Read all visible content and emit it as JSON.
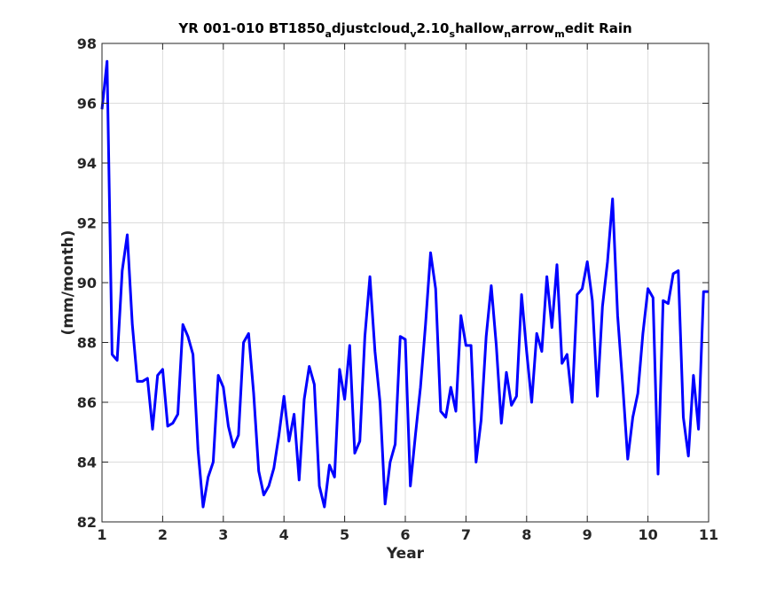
{
  "chart_data": {
    "type": "line",
    "title": "YR 001-010 BT1850",
    "title_parts": [
      "YR 001-010 BT1850",
      "a",
      "djustcloud",
      "v",
      "2.10",
      "s",
      "hallow",
      "n",
      "arrow",
      "m",
      "edit Rain"
    ],
    "xlabel": "Year",
    "ylabel": "(mm/month)",
    "xlim": [
      1,
      11
    ],
    "ylim": [
      82,
      98
    ],
    "xticks": [
      1,
      2,
      3,
      4,
      5,
      6,
      7,
      8,
      9,
      10,
      11
    ],
    "yticks": [
      82,
      84,
      86,
      88,
      90,
      92,
      94,
      96,
      98
    ],
    "grid": true,
    "series": [
      {
        "color": "#0000ff",
        "x": [
          1.0,
          1.083,
          1.167,
          1.25,
          1.333,
          1.417,
          1.5,
          1.583,
          1.667,
          1.75,
          1.833,
          1.917,
          2.0,
          2.083,
          2.167,
          2.25,
          2.333,
          2.417,
          2.5,
          2.583,
          2.667,
          2.75,
          2.833,
          2.917,
          3.0,
          3.083,
          3.167,
          3.25,
          3.333,
          3.417,
          3.5,
          3.583,
          3.667,
          3.75,
          3.833,
          3.917,
          4.0,
          4.083,
          4.167,
          4.25,
          4.333,
          4.417,
          4.5,
          4.583,
          4.667,
          4.75,
          4.833,
          4.917,
          5.0,
          5.083,
          5.167,
          5.25,
          5.333,
          5.417,
          5.5,
          5.583,
          5.667,
          5.75,
          5.833,
          5.917,
          6.0,
          6.083,
          6.167,
          6.25,
          6.333,
          6.417,
          6.5,
          6.583,
          6.667,
          6.75,
          6.833,
          6.917,
          7.0,
          7.083,
          7.167,
          7.25,
          7.333,
          7.417,
          7.5,
          7.583,
          7.667,
          7.75,
          7.833,
          7.917,
          8.0,
          8.083,
          8.167,
          8.25,
          8.333,
          8.417,
          8.5,
          8.583,
          8.667,
          8.75,
          8.833,
          8.917,
          9.0,
          9.083,
          9.167,
          9.25,
          9.333,
          9.417,
          9.5,
          9.583,
          9.667,
          9.75,
          9.833,
          9.917,
          10.0,
          10.083,
          10.167,
          10.25,
          10.333,
          10.417,
          10.5,
          10.583,
          10.667,
          10.75,
          10.833,
          10.917,
          11.0
        ],
        "y": [
          95.8,
          97.4,
          87.6,
          87.4,
          90.4,
          91.6,
          88.6,
          86.7,
          86.7,
          86.8,
          85.1,
          86.9,
          87.1,
          85.2,
          85.3,
          85.6,
          88.6,
          88.2,
          87.6,
          84.4,
          82.5,
          83.5,
          84.0,
          86.9,
          86.5,
          85.2,
          84.5,
          84.9,
          88.0,
          88.3,
          86.3,
          83.7,
          82.9,
          83.2,
          83.8,
          84.9,
          86.2,
          84.7,
          85.6,
          83.4,
          86.1,
          87.2,
          86.6,
          83.2,
          82.5,
          83.9,
          83.5,
          87.1,
          86.1,
          87.9,
          84.3,
          84.7,
          88.2,
          90.2,
          87.7,
          86.0,
          82.6,
          84.0,
          84.6,
          88.2,
          88.1,
          83.2,
          84.9,
          86.5,
          88.6,
          91.0,
          89.8,
          85.7,
          85.5,
          86.5,
          85.7,
          88.9,
          87.9,
          87.9,
          84.0,
          85.4,
          88.2,
          89.9,
          87.9,
          85.3,
          87.0,
          85.9,
          86.2,
          89.6,
          87.7,
          86.0,
          88.3,
          87.7,
          90.2,
          88.5,
          90.6,
          87.3,
          87.6,
          86.0,
          89.6,
          89.8,
          90.7,
          89.4,
          86.2,
          89.2,
          90.7,
          92.8,
          88.9,
          86.6,
          84.1,
          85.5,
          86.3,
          88.3,
          89.8,
          89.5,
          83.6,
          89.4,
          89.3,
          90.3,
          90.4,
          85.5,
          84.2,
          86.9,
          85.1,
          89.7,
          89.7
        ]
      }
    ]
  }
}
